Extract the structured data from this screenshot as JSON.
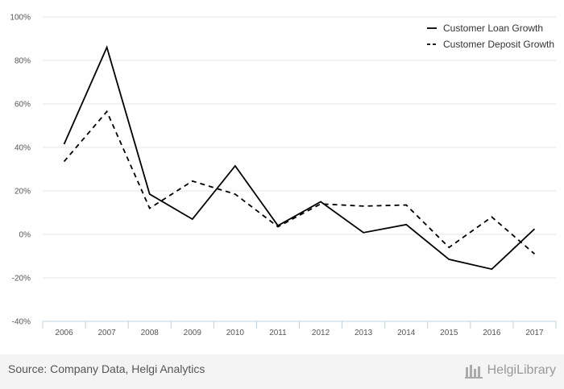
{
  "chart_data": {
    "type": "line",
    "title": "",
    "xlabel": "",
    "ylabel": "",
    "categories": [
      "2006",
      "2007",
      "2008",
      "2009",
      "2010",
      "2011",
      "2012",
      "2013",
      "2014",
      "2015",
      "2016",
      "2017"
    ],
    "ylim": [
      -40,
      100
    ],
    "yticks": [
      -40,
      -20,
      0,
      20,
      40,
      60,
      80,
      100
    ],
    "ytick_labels": [
      "-40%",
      "-20%",
      "0%",
      "20%",
      "40%",
      "60%",
      "80%",
      "100%"
    ],
    "grid": true,
    "legend_position": "top-right",
    "series": [
      {
        "name": "Customer Loan Growth",
        "style": "solid",
        "color": "#000000",
        "values": [
          41.5,
          86,
          18.5,
          7,
          31.5,
          4,
          15,
          0.8,
          4.5,
          -11.5,
          -16,
          2.5
        ]
      },
      {
        "name": "Customer Deposit Growth",
        "style": "dashed",
        "color": "#000000",
        "values": [
          33.5,
          56.5,
          12,
          24.5,
          18.5,
          3.5,
          14,
          13,
          13.5,
          -6,
          8,
          -9
        ]
      }
    ]
  },
  "footer": {
    "source": "Source: Company Data, Helgi Analytics",
    "brand": "HelgiLibrary"
  },
  "colors": {
    "grid": "#e6e6e6",
    "axis": "#c0d0e0",
    "line": "#000000",
    "footer_bg": "#f4f4f4"
  },
  "icons": {
    "brand_icon": "library-logo-icon"
  }
}
